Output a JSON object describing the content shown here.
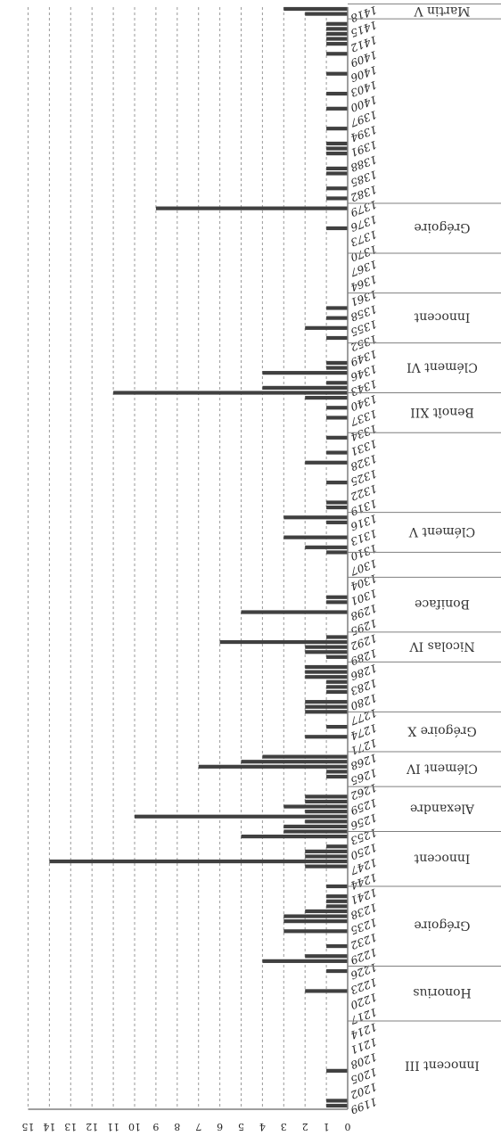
{
  "chart_data": {
    "type": "bar",
    "orientation": "horizontal-rotated",
    "ylim": [
      0,
      15
    ],
    "y_ticks": [
      "0",
      "1",
      "2",
      "3",
      "4",
      "5",
      "6",
      "7",
      "8",
      "9",
      "10",
      "11",
      "12",
      "13",
      "14",
      "15"
    ],
    "x_ticks": [
      "1199",
      "1202",
      "1205",
      "1208",
      "1211",
      "1214",
      "1217",
      "1220",
      "1223",
      "1226",
      "1229",
      "1232",
      "1235",
      "1238",
      "1241",
      "1244",
      "1247",
      "1250",
      "1253",
      "1256",
      "1259",
      "1262",
      "1265",
      "1268",
      "1271",
      "1274",
      "1277",
      "1280",
      "1283",
      "1286",
      "1289",
      "1292",
      "1295",
      "1298",
      "1301",
      "1304",
      "1307",
      "1310",
      "1313",
      "1316",
      "1319",
      "1322",
      "1325",
      "1328",
      "1331",
      "1334",
      "1337",
      "1340",
      "1343",
      "1346",
      "1349",
      "1352",
      "1355",
      "1358",
      "1361",
      "1364",
      "1367",
      "1370",
      "1373",
      "1376",
      "1379",
      "1382",
      "1385",
      "1388",
      "1391",
      "1394",
      "1397",
      "1400",
      "1403",
      "1406",
      "1409",
      "1412",
      "1415",
      "1418"
    ],
    "x_first": 1199,
    "x_last": 1419,
    "data": [
      {
        "x": 1199,
        "y": 1
      },
      {
        "x": 1200,
        "y": 1
      },
      {
        "x": 1206,
        "y": 1
      },
      {
        "x": 1222,
        "y": 2
      },
      {
        "x": 1226,
        "y": 1
      },
      {
        "x": 1228,
        "y": 4
      },
      {
        "x": 1229,
        "y": 2
      },
      {
        "x": 1231,
        "y": 1
      },
      {
        "x": 1234,
        "y": 3
      },
      {
        "x": 1236,
        "y": 3
      },
      {
        "x": 1237,
        "y": 3
      },
      {
        "x": 1238,
        "y": 2
      },
      {
        "x": 1239,
        "y": 1
      },
      {
        "x": 1240,
        "y": 1
      },
      {
        "x": 1241,
        "y": 1
      },
      {
        "x": 1243,
        "y": 1
      },
      {
        "x": 1247,
        "y": 2
      },
      {
        "x": 1248,
        "y": 14
      },
      {
        "x": 1249,
        "y": 2
      },
      {
        "x": 1250,
        "y": 2
      },
      {
        "x": 1251,
        "y": 1
      },
      {
        "x": 1253,
        "y": 5
      },
      {
        "x": 1254,
        "y": 3
      },
      {
        "x": 1255,
        "y": 3
      },
      {
        "x": 1256,
        "y": 2
      },
      {
        "x": 1257,
        "y": 10
      },
      {
        "x": 1258,
        "y": 2
      },
      {
        "x": 1259,
        "y": 3
      },
      {
        "x": 1260,
        "y": 2
      },
      {
        "x": 1261,
        "y": 2
      },
      {
        "x": 1265,
        "y": 1
      },
      {
        "x": 1266,
        "y": 1
      },
      {
        "x": 1267,
        "y": 7
      },
      {
        "x": 1268,
        "y": 5
      },
      {
        "x": 1269,
        "y": 4
      },
      {
        "x": 1273,
        "y": 2
      },
      {
        "x": 1275,
        "y": 1
      },
      {
        "x": 1278,
        "y": 2
      },
      {
        "x": 1279,
        "y": 2
      },
      {
        "x": 1280,
        "y": 2
      },
      {
        "x": 1282,
        "y": 1
      },
      {
        "x": 1283,
        "y": 1
      },
      {
        "x": 1284,
        "y": 1
      },
      {
        "x": 1285,
        "y": 2
      },
      {
        "x": 1286,
        "y": 2
      },
      {
        "x": 1287,
        "y": 2
      },
      {
        "x": 1289,
        "y": 1
      },
      {
        "x": 1290,
        "y": 2
      },
      {
        "x": 1291,
        "y": 2
      },
      {
        "x": 1292,
        "y": 6
      },
      {
        "x": 1293,
        "y": 1
      },
      {
        "x": 1298,
        "y": 5
      },
      {
        "x": 1300,
        "y": 1
      },
      {
        "x": 1301,
        "y": 1
      },
      {
        "x": 1310,
        "y": 1
      },
      {
        "x": 1311,
        "y": 2
      },
      {
        "x": 1313,
        "y": 3
      },
      {
        "x": 1316,
        "y": 1
      },
      {
        "x": 1317,
        "y": 3
      },
      {
        "x": 1319,
        "y": 1
      },
      {
        "x": 1320,
        "y": 1
      },
      {
        "x": 1324,
        "y": 1
      },
      {
        "x": 1328,
        "y": 2
      },
      {
        "x": 1330,
        "y": 1
      },
      {
        "x": 1333,
        "y": 1
      },
      {
        "x": 1337,
        "y": 1
      },
      {
        "x": 1339,
        "y": 1
      },
      {
        "x": 1341,
        "y": 2
      },
      {
        "x": 1342,
        "y": 11
      },
      {
        "x": 1343,
        "y": 4
      },
      {
        "x": 1344,
        "y": 1
      },
      {
        "x": 1346,
        "y": 4
      },
      {
        "x": 1347,
        "y": 1
      },
      {
        "x": 1348,
        "y": 1
      },
      {
        "x": 1353,
        "y": 1
      },
      {
        "x": 1355,
        "y": 2
      },
      {
        "x": 1357,
        "y": 1
      },
      {
        "x": 1359,
        "y": 1
      },
      {
        "x": 1375,
        "y": 1
      },
      {
        "x": 1379,
        "y": 9
      },
      {
        "x": 1381,
        "y": 1
      },
      {
        "x": 1383,
        "y": 1
      },
      {
        "x": 1386,
        "y": 1
      },
      {
        "x": 1387,
        "y": 1
      },
      {
        "x": 1390,
        "y": 1
      },
      {
        "x": 1391,
        "y": 1
      },
      {
        "x": 1392,
        "y": 1
      },
      {
        "x": 1395,
        "y": 1
      },
      {
        "x": 1399,
        "y": 1
      },
      {
        "x": 1402,
        "y": 1
      },
      {
        "x": 1406,
        "y": 1
      },
      {
        "x": 1410,
        "y": 1
      },
      {
        "x": 1412,
        "y": 1
      },
      {
        "x": 1413,
        "y": 1
      },
      {
        "x": 1414,
        "y": 1
      },
      {
        "x": 1415,
        "y": 1
      },
      {
        "x": 1416,
        "y": 1
      },
      {
        "x": 1418,
        "y": 2
      },
      {
        "x": 1419,
        "y": 3
      }
    ],
    "pontificates": [
      {
        "name": "Innocent III",
        "start": 1198,
        "end": 1216
      },
      {
        "name": "Honorius",
        "start": 1216,
        "end": 1227
      },
      {
        "name": "Grégoire",
        "start": 1227,
        "end": 1243
      },
      {
        "name": "Innocent",
        "start": 1243,
        "end": 1254
      },
      {
        "name": "Alexandre",
        "start": 1254,
        "end": 1263
      },
      {
        "name": "Clément IV",
        "start": 1263,
        "end": 1270
      },
      {
        "name": "Grégoire X",
        "start": 1270,
        "end": 1278
      },
      {
        "name": "",
        "start": 1278,
        "end": 1288
      },
      {
        "name": "Nicolas IV",
        "start": 1288,
        "end": 1294
      },
      {
        "name": "Boniface",
        "start": 1294,
        "end": 1305
      },
      {
        "name": "",
        "start": 1305,
        "end": 1310
      },
      {
        "name": "Clément V",
        "start": 1310,
        "end": 1318
      },
      {
        "name": "",
        "start": 1318,
        "end": 1334
      },
      {
        "name": "Benoît XII",
        "start": 1334,
        "end": 1342
      },
      {
        "name": "Clément VI",
        "start": 1342,
        "end": 1352
      },
      {
        "name": "Innocent",
        "start": 1352,
        "end": 1362
      },
      {
        "name": "",
        "start": 1362,
        "end": 1370
      },
      {
        "name": "Grégoire",
        "start": 1370,
        "end": 1380
      },
      {
        "name": "",
        "start": 1380,
        "end": 1417
      },
      {
        "name": "Martin V",
        "start": 1417,
        "end": 1420
      }
    ]
  }
}
